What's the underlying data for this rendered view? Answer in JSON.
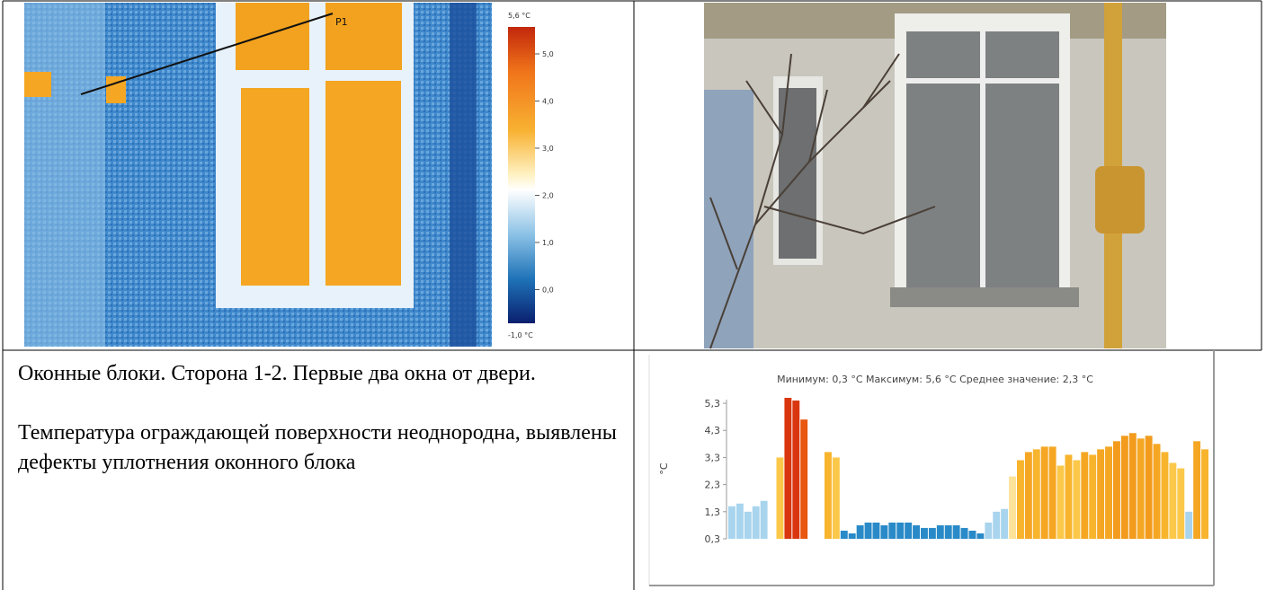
{
  "thermal": {
    "marker": "P1",
    "scale_max": "5,6 °C",
    "scale_min": "-1,0 °C",
    "scale_labels": [
      "5,0",
      "4,0",
      "3,0",
      "2,0",
      "1,0",
      "0,0"
    ]
  },
  "text": {
    "paragraphs": [
      "Оконные блоки. Сторона 1-2. Первые два окна от двери.",
      "Температура ограждающей поверхности неоднородна, выявлены дефекты уплотнения оконного блока"
    ]
  },
  "profile": {
    "title": "Минимум: 0,3 °C Максимум: 5,6 °C Среднее значение: 2,3 °C",
    "y_label": "°C",
    "ylim": [
      0.3,
      5.6
    ],
    "yticks": [
      {
        "value": 0.3,
        "label": "0,3"
      },
      {
        "value": 1.3,
        "label": "1,3"
      },
      {
        "value": 2.3,
        "label": "2,3"
      },
      {
        "value": 3.3,
        "label": "3,3"
      },
      {
        "value": 4.3,
        "label": "4,3"
      },
      {
        "value": 5.3,
        "label": "5,3"
      }
    ],
    "values": [
      1.5,
      1.6,
      1.3,
      1.5,
      1.7,
      0.3,
      3.3,
      5.5,
      5.4,
      4.7,
      0.3,
      0.3,
      3.5,
      3.3,
      0.6,
      0.5,
      0.8,
      0.9,
      0.9,
      0.8,
      0.9,
      0.9,
      0.9,
      0.8,
      0.7,
      0.7,
      0.8,
      0.8,
      0.8,
      0.7,
      0.6,
      0.5,
      0.9,
      1.3,
      1.4,
      2.6,
      3.2,
      3.5,
      3.6,
      3.7,
      3.7,
      3.0,
      3.4,
      3.2,
      3.5,
      3.4,
      3.6,
      3.7,
      3.9,
      4.1,
      4.2,
      4.0,
      4.1,
      3.8,
      3.5,
      3.1,
      2.9,
      1.3,
      3.9,
      3.6
    ],
    "colors": [
      "#a8d4ee",
      "#a8d4ee",
      "#a8d4ee",
      "#a8d4ee",
      "#a8d4ee",
      "#a8d4ee",
      "#fbc84a",
      "#d9360f",
      "#d9360f",
      "#e8560f",
      "#fde39a",
      "#fde39a",
      "#f7b42c",
      "#fbc84a",
      "#2a8ac8",
      "#2a8ac8",
      "#2a8ac8",
      "#2a8ac8",
      "#2a8ac8",
      "#2a8ac8",
      "#2a8ac8",
      "#2a8ac8",
      "#2a8ac8",
      "#2a8ac8",
      "#2a8ac8",
      "#2a8ac8",
      "#2a8ac8",
      "#2a8ac8",
      "#2a8ac8",
      "#2a8ac8",
      "#2a8ac8",
      "#2a8ac8",
      "#a8d4ee",
      "#a8d4ee",
      "#a8d4ee",
      "#fde39a",
      "#f7b42c",
      "#f5a623",
      "#f7b42c",
      "#f5a623",
      "#f5a623",
      "#fbc84a",
      "#f7b42c",
      "#fbc84a",
      "#f5a623",
      "#f7b42c",
      "#f5a623",
      "#f5a623",
      "#f29b1c",
      "#f29b1c",
      "#f29b1c",
      "#f5a623",
      "#f29b1c",
      "#f5a623",
      "#f7b42c",
      "#fbc84a",
      "#fbc84a",
      "#a8d4ee",
      "#f5a623",
      "#f7b42c"
    ]
  }
}
